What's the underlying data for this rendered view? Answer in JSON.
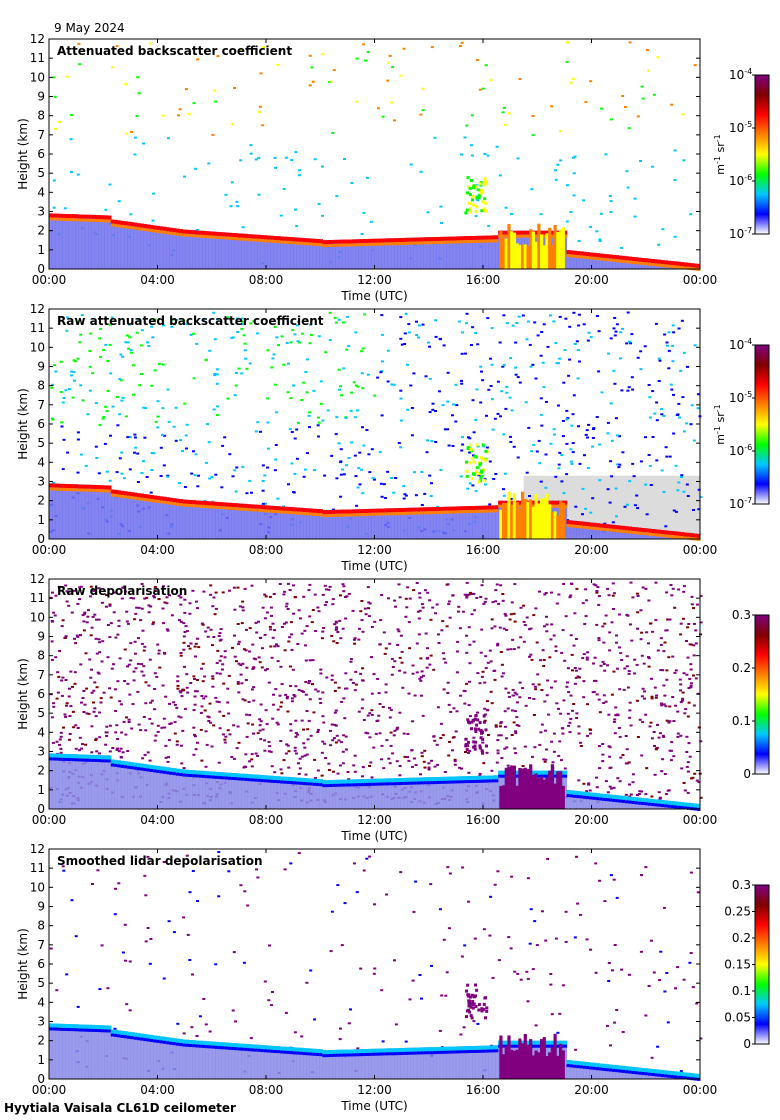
{
  "date": "9 May 2024",
  "footer": "Hyytiala Vaisala CL61D ceilometer",
  "colors": {
    "background": "#ffffff",
    "no_data": "#dcdcdc",
    "colormap": [
      "#ffffff",
      "#0000ff",
      "#00c8ff",
      "#00ff00",
      "#ffff00",
      "#ff8000",
      "#ff0000",
      "#800000",
      "#800080"
    ]
  },
  "chart_data": [
    {
      "type": "heatmap",
      "title": "Attenuated backscatter coefficient",
      "xlabel": "Time (UTC)",
      "ylabel": "Height (km)",
      "xticks": [
        "00:00",
        "04:00",
        "08:00",
        "12:00",
        "16:00",
        "20:00",
        "00:00"
      ],
      "yticks": [
        "0",
        "1",
        "2",
        "3",
        "4",
        "5",
        "6",
        "7",
        "8",
        "9",
        "10",
        "11",
        "12"
      ],
      "ylim": [
        0,
        12
      ],
      "xlim_hours": [
        0,
        24
      ],
      "colorbar": {
        "scale": "log",
        "range": [
          1e-07,
          0.0001
        ],
        "ticks": [
          {
            "base": "10",
            "exp": "-4"
          },
          {
            "base": "10",
            "exp": "-5"
          },
          {
            "base": "10",
            "exp": "-6"
          },
          {
            "base": "10",
            "exp": "-7"
          }
        ],
        "unit": {
          "m": "m",
          "m_exp": "-1",
          "sr": "sr",
          "sr_exp": "-1"
        }
      }
    },
    {
      "type": "heatmap",
      "title": "Raw attenuated backscatter coefficient",
      "xlabel": "Time (UTC)",
      "ylabel": "Height (km)",
      "xticks": [
        "00:00",
        "04:00",
        "08:00",
        "12:00",
        "16:00",
        "20:00",
        "00:00"
      ],
      "yticks": [
        "0",
        "1",
        "2",
        "3",
        "4",
        "5",
        "6",
        "7",
        "8",
        "9",
        "10",
        "11",
        "12"
      ],
      "ylim": [
        0,
        12
      ],
      "xlim_hours": [
        0,
        24
      ],
      "colorbar": {
        "scale": "log",
        "range": [
          1e-07,
          0.0001
        ],
        "ticks": [
          {
            "base": "10",
            "exp": "-4"
          },
          {
            "base": "10",
            "exp": "-5"
          },
          {
            "base": "10",
            "exp": "-6"
          },
          {
            "base": "10",
            "exp": "-7"
          }
        ],
        "unit": {
          "m": "m",
          "m_exp": "-1",
          "sr": "sr",
          "sr_exp": "-1"
        }
      }
    },
    {
      "type": "heatmap",
      "title": "Raw depolarisation",
      "xlabel": "Time (UTC)",
      "ylabel": "Height (km)",
      "xticks": [
        "00:00",
        "04:00",
        "08:00",
        "12:00",
        "16:00",
        "20:00",
        "00:00"
      ],
      "yticks": [
        "0",
        "1",
        "2",
        "3",
        "4",
        "5",
        "6",
        "7",
        "8",
        "9",
        "10",
        "11",
        "12"
      ],
      "ylim": [
        0,
        12
      ],
      "xlim_hours": [
        0,
        24
      ],
      "colorbar": {
        "scale": "linear",
        "range": [
          0,
          0.3
        ],
        "ticks": [
          "0.3",
          "0.2",
          "0.1",
          "0"
        ]
      }
    },
    {
      "type": "heatmap",
      "title": "Smoothed lidar depolarisation",
      "xlabel": "Time (UTC)",
      "ylabel": "Height (km)",
      "xticks": [
        "00:00",
        "04:00",
        "08:00",
        "12:00",
        "16:00",
        "20:00",
        "00:00"
      ],
      "yticks": [
        "0",
        "1",
        "2",
        "3",
        "4",
        "5",
        "6",
        "7",
        "8",
        "9",
        "10",
        "11",
        "12"
      ],
      "ylim": [
        0,
        12
      ],
      "xlim_hours": [
        0,
        24
      ],
      "colorbar": {
        "scale": "linear",
        "range": [
          0,
          0.3
        ],
        "ticks": [
          "0.3",
          "0.25",
          "0.2",
          "0.15",
          "0.1",
          "0.05",
          "0"
        ]
      }
    }
  ]
}
